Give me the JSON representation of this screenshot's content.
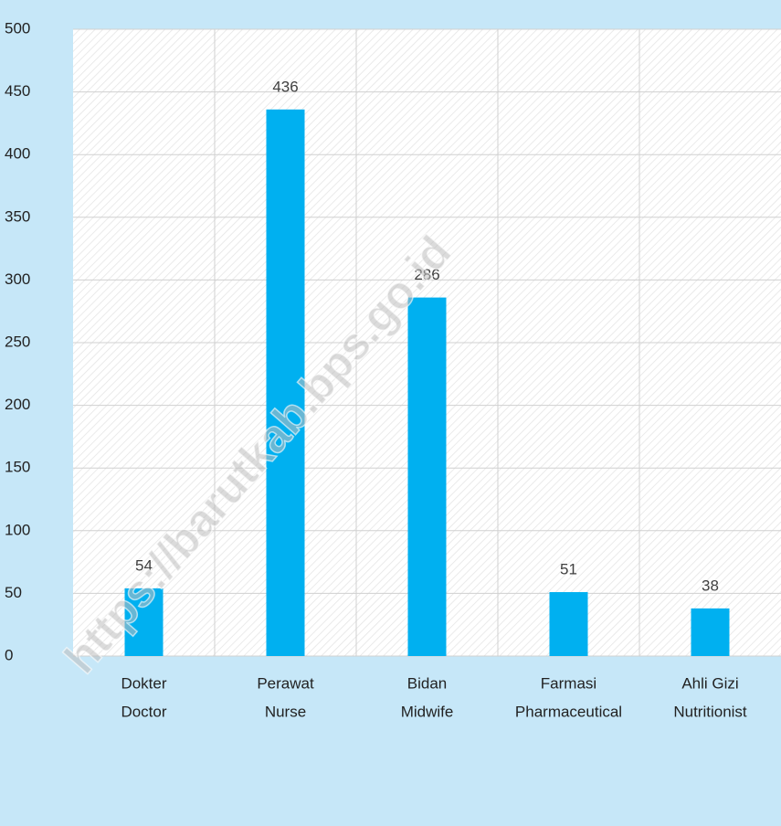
{
  "chart_data": {
    "type": "bar",
    "categories": [
      [
        "Dokter",
        "Doctor"
      ],
      [
        "Perawat",
        "Nurse"
      ],
      [
        "Bidan",
        "Midwife"
      ],
      [
        "Farmasi",
        "Pharmaceutical"
      ],
      [
        "Ahli Gizi",
        "Nutritionist"
      ]
    ],
    "values": [
      54,
      436,
      286,
      51,
      38
    ],
    "color": "#00b0f0",
    "ylim": [
      0,
      500
    ],
    "yticks": [
      0,
      50,
      100,
      150,
      200,
      250,
      300,
      350,
      400,
      450,
      500
    ],
    "grid": true,
    "watermark": "https://barutkab.bps.go.id"
  }
}
